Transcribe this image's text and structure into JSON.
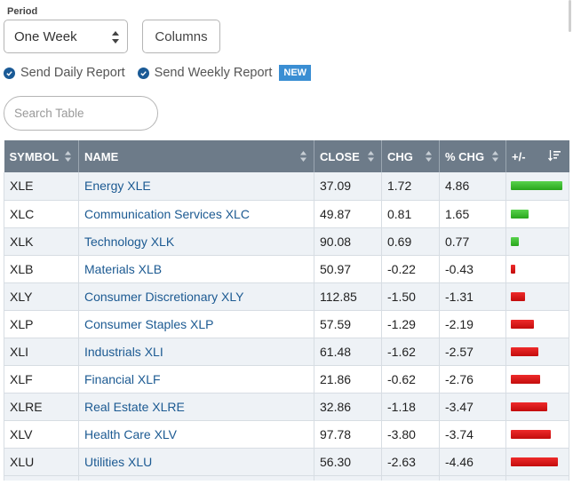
{
  "period": {
    "label": "Period",
    "selected": "One Week"
  },
  "columns_label": "Columns",
  "reports": {
    "daily_label": "Send Daily Report",
    "weekly_label": "Send Weekly Report",
    "new_badge": "NEW"
  },
  "search": {
    "placeholder": "Search Table"
  },
  "table": {
    "headers": {
      "symbol": "SYMBOL",
      "name": "NAME",
      "close": "CLOSE",
      "chg": "CHG",
      "pct_chg": "% CHG",
      "plus_minus": "+/-"
    },
    "rows": [
      {
        "symbol": "XLE",
        "name": "Energy XLE",
        "close": "37.09",
        "chg": "1.72",
        "pct_chg": "4.86"
      },
      {
        "symbol": "XLC",
        "name": "Communication Services XLC",
        "close": "49.87",
        "chg": "0.81",
        "pct_chg": "1.65"
      },
      {
        "symbol": "XLK",
        "name": "Technology XLK",
        "close": "90.08",
        "chg": "0.69",
        "pct_chg": "0.77"
      },
      {
        "symbol": "XLB",
        "name": "Materials XLB",
        "close": "50.97",
        "chg": "-0.22",
        "pct_chg": "-0.43"
      },
      {
        "symbol": "XLY",
        "name": "Consumer Discretionary XLY",
        "close": "112.85",
        "chg": "-1.50",
        "pct_chg": "-1.31"
      },
      {
        "symbol": "XLP",
        "name": "Consumer Staples XLP",
        "close": "57.59",
        "chg": "-1.29",
        "pct_chg": "-2.19"
      },
      {
        "symbol": "XLI",
        "name": "Industrials XLI",
        "close": "61.48",
        "chg": "-1.62",
        "pct_chg": "-2.57"
      },
      {
        "symbol": "XLF",
        "name": "Financial XLF",
        "close": "21.86",
        "chg": "-0.62",
        "pct_chg": "-2.76"
      },
      {
        "symbol": "XLRE",
        "name": "Real Estate XLRE",
        "close": "32.86",
        "chg": "-1.18",
        "pct_chg": "-3.47"
      },
      {
        "symbol": "XLV",
        "name": "Health Care XLV",
        "close": "97.78",
        "chg": "-3.80",
        "pct_chg": "-3.74"
      },
      {
        "symbol": "XLU",
        "name": "Utilities XLU",
        "close": "56.30",
        "chg": "-2.63",
        "pct_chg": "-4.46"
      }
    ]
  },
  "colors": {
    "header_bg": "#6d7b89",
    "link": "#1c5a92",
    "positive_bar": "#2bb51f",
    "negative_bar": "#d41414",
    "badge": "#3a8ed3"
  }
}
